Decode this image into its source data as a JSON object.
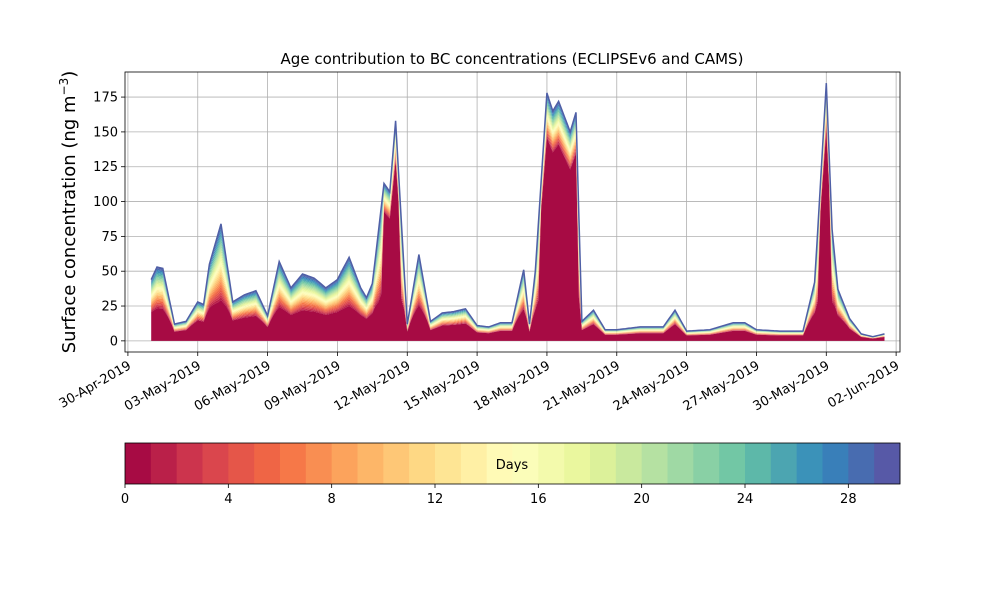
{
  "chart_data": {
    "type": "area",
    "title": "Age contribution to BC concentrations (ECLIPSEv6 and CAMS)",
    "ylabel_main": "Surface concentration (ng m",
    "ylabel_sup": "−3",
    "ylabel_close": ")",
    "xlabel": "",
    "ylim": [
      -8,
      193
    ],
    "y_ticks": [
      0,
      25,
      50,
      75,
      100,
      125,
      150,
      175
    ],
    "y_tick_labels": [
      "0",
      "25",
      "50",
      "75",
      "100",
      "125",
      "150",
      "175"
    ],
    "x_range_days": [
      "2019-04-29T21:00",
      "2019-06-02T04:00"
    ],
    "x_tick_dates": [
      "2019-04-30",
      "2019-05-03",
      "2019-05-06",
      "2019-05-09",
      "2019-05-12",
      "2019-05-15",
      "2019-05-18",
      "2019-05-21",
      "2019-05-24",
      "2019-05-27",
      "2019-05-30",
      "2019-06-02"
    ],
    "x_tick_labels": [
      "30-Apr-2019",
      "03-May-2019",
      "06-May-2019",
      "09-May-2019",
      "12-May-2019",
      "15-May-2019",
      "18-May-2019",
      "21-May-2019",
      "24-May-2019",
      "27-May-2019",
      "30-May-2019",
      "02-Jun-2019"
    ],
    "grid": true,
    "total": {
      "dates": [
        "2019-05-01T00:00",
        "2019-05-01T06:00",
        "2019-05-01T12:00",
        "2019-05-02T00:00",
        "2019-05-02T12:00",
        "2019-05-03T00:00",
        "2019-05-03T06:00",
        "2019-05-03T12:00",
        "2019-05-04T00:00",
        "2019-05-04T12:00",
        "2019-05-05T00:00",
        "2019-05-05T12:00",
        "2019-05-06T00:00",
        "2019-05-06T12:00",
        "2019-05-07T00:00",
        "2019-05-07T12:00",
        "2019-05-08T00:00",
        "2019-05-08T12:00",
        "2019-05-09T00:00",
        "2019-05-09T12:00",
        "2019-05-10T00:00",
        "2019-05-10T06:00",
        "2019-05-10T12:00",
        "2019-05-11T00:00",
        "2019-05-11T06:00",
        "2019-05-11T12:00",
        "2019-05-12T00:00",
        "2019-05-12T12:00",
        "2019-05-13T00:00",
        "2019-05-13T12:00",
        "2019-05-14T00:00",
        "2019-05-14T12:00",
        "2019-05-15T00:00",
        "2019-05-15T12:00",
        "2019-05-16T00:00",
        "2019-05-16T12:00",
        "2019-05-17T00:00",
        "2019-05-17T06:00",
        "2019-05-17T12:00",
        "2019-05-18T00:00",
        "2019-05-18T06:00",
        "2019-05-18T12:00",
        "2019-05-19T00:00",
        "2019-05-19T06:00",
        "2019-05-19T12:00",
        "2019-05-20T00:00",
        "2019-05-20T12:00",
        "2019-05-21T00:00",
        "2019-05-22T00:00",
        "2019-05-23T00:00",
        "2019-05-23T12:00",
        "2019-05-24T00:00",
        "2019-05-25T00:00",
        "2019-05-26T00:00",
        "2019-05-26T12:00",
        "2019-05-27T00:00",
        "2019-05-28T00:00",
        "2019-05-28T12:00",
        "2019-05-29T00:00",
        "2019-05-29T12:00",
        "2019-05-30T00:00",
        "2019-05-30T06:00",
        "2019-05-30T12:00",
        "2019-05-31T00:00",
        "2019-05-31T12:00",
        "2019-06-01T00:00",
        "2019-06-01T12:00"
      ],
      "values": [
        44,
        53,
        52,
        12,
        14,
        28,
        26,
        55,
        84,
        28,
        33,
        36,
        18,
        57,
        38,
        48,
        45,
        38,
        44,
        60,
        38,
        31,
        41,
        113,
        107,
        158,
        12,
        62,
        14,
        20,
        21,
        23,
        11,
        10,
        13,
        13,
        51,
        12,
        50,
        178,
        165,
        172,
        150,
        164,
        14,
        22,
        8,
        8,
        10,
        10,
        22,
        7,
        8,
        13,
        13,
        8,
        7,
        7,
        7,
        42,
        185,
        80,
        37,
        16,
        5,
        3,
        5
      ]
    },
    "colorbar": {
      "label": "Days",
      "min": 0,
      "max": 30,
      "bins": 30,
      "ticks": [
        0,
        4,
        8,
        12,
        16,
        20,
        24,
        28
      ],
      "tick_labels": [
        "0",
        "4",
        "8",
        "12",
        "16",
        "20",
        "24",
        "28"
      ],
      "colormap": "Spectral",
      "colors": [
        "#9e0142",
        "#d53e4f",
        "#f46d43",
        "#fdae61",
        "#fee08b",
        "#ffffbf",
        "#e6f598",
        "#abdda4",
        "#66c2a5",
        "#3288bd",
        "#5e4fa2"
      ]
    }
  }
}
